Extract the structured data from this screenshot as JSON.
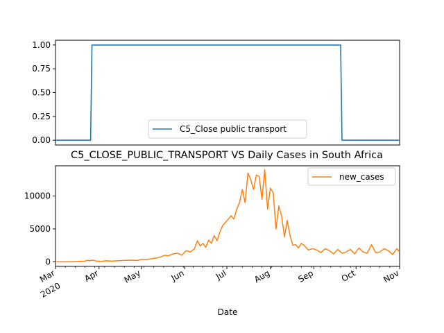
{
  "chart_data": [
    {
      "type": "line",
      "title": "",
      "xlabel": "",
      "ylabel": "",
      "ylim": [
        -0.05,
        1.05
      ],
      "yticks": [
        "0.00",
        "0.25",
        "0.50",
        "0.75",
        "1.00"
      ],
      "xlim": [
        "2020-03-01",
        "2020-11-01"
      ],
      "legend": "bottom-center",
      "grid": false,
      "series": [
        {
          "name": "C5_Close public transport",
          "color": "#1f77b4",
          "x": [
            "2020-03-01",
            "2020-03-26",
            "2020-03-27",
            "2020-09-20",
            "2020-09-21",
            "2020-11-01"
          ],
          "values": [
            0,
            0,
            1,
            1,
            0,
            0
          ]
        }
      ]
    },
    {
      "type": "line",
      "title": "C5_CLOSE_PUBLIC_TRANSPORT VS Daily Cases in South Africa",
      "xlabel": "Date",
      "ylabel": "",
      "ylim": [
        -700,
        14600
      ],
      "yticks": [
        "0",
        "5000",
        "10000"
      ],
      "xticks": [
        {
          "label": "Mar",
          "sub": "2020"
        },
        {
          "label": "Apr"
        },
        {
          "label": "May"
        },
        {
          "label": "Jun"
        },
        {
          "label": "Jul"
        },
        {
          "label": "Aug"
        },
        {
          "label": "Sep"
        },
        {
          "label": "Oct"
        },
        {
          "label": "Nov"
        }
      ],
      "xlim": [
        "2020-03-01",
        "2020-11-01"
      ],
      "legend": "top-right",
      "grid": false,
      "series": [
        {
          "name": "new_cases",
          "color": "#ff7f0e",
          "x": [
            "2020-03-01",
            "2020-03-12",
            "2020-03-22",
            "2020-03-24",
            "2020-03-25",
            "2020-03-27",
            "2020-03-28",
            "2020-03-30",
            "2020-04-03",
            "2020-04-06",
            "2020-04-10",
            "2020-04-15",
            "2020-04-20",
            "2020-04-25",
            "2020-04-28",
            "2020-05-01",
            "2020-05-05",
            "2020-05-08",
            "2020-05-12",
            "2020-05-15",
            "2020-05-18",
            "2020-05-20",
            "2020-05-24",
            "2020-05-27",
            "2020-05-30",
            "2020-06-02",
            "2020-06-05",
            "2020-06-08",
            "2020-06-10",
            "2020-06-12",
            "2020-06-14",
            "2020-06-16",
            "2020-06-18",
            "2020-06-20",
            "2020-06-22",
            "2020-06-24",
            "2020-06-26",
            "2020-06-28",
            "2020-06-30",
            "2020-07-02",
            "2020-07-04",
            "2020-07-06",
            "2020-07-08",
            "2020-07-10",
            "2020-07-12",
            "2020-07-14",
            "2020-07-16",
            "2020-07-18",
            "2020-07-20",
            "2020-07-22",
            "2020-07-24",
            "2020-07-26",
            "2020-07-28",
            "2020-07-30",
            "2020-08-01",
            "2020-08-03",
            "2020-08-05",
            "2020-08-07",
            "2020-08-09",
            "2020-08-11",
            "2020-08-13",
            "2020-08-15",
            "2020-08-17",
            "2020-08-19",
            "2020-08-21",
            "2020-08-23",
            "2020-08-25",
            "2020-08-28",
            "2020-08-31",
            "2020-09-03",
            "2020-09-06",
            "2020-09-09",
            "2020-09-12",
            "2020-09-15",
            "2020-09-18",
            "2020-09-21",
            "2020-09-24",
            "2020-09-27",
            "2020-09-30",
            "2020-10-03",
            "2020-10-06",
            "2020-10-09",
            "2020-10-12",
            "2020-10-15",
            "2020-10-18",
            "2020-10-21",
            "2020-10-24",
            "2020-10-27",
            "2020-10-30",
            "2020-11-01"
          ],
          "values": [
            0,
            0,
            100,
            240,
            150,
            250,
            230,
            120,
            80,
            150,
            100,
            180,
            220,
            250,
            200,
            350,
            350,
            450,
            600,
            750,
            1000,
            900,
            1200,
            1300,
            1000,
            1700,
            1500,
            2000,
            3200,
            2400,
            2800,
            2200,
            3300,
            2800,
            4000,
            3200,
            4500,
            5500,
            6000,
            6500,
            7000,
            6500,
            8000,
            9000,
            11000,
            9000,
            13500,
            12500,
            11000,
            13200,
            13000,
            9500,
            14000,
            8000,
            11200,
            10500,
            5000,
            8500,
            7000,
            3800,
            6300,
            4000,
            2500,
            2600,
            2100,
            2800,
            2500,
            1800,
            2000,
            1800,
            1400,
            2000,
            1700,
            1200,
            1900,
            1300,
            1500,
            1900,
            1200,
            2100,
            1500,
            1300,
            2600,
            1400,
            1500,
            2000,
            1700,
            1100,
            2000,
            1500
          ]
        }
      ]
    }
  ]
}
